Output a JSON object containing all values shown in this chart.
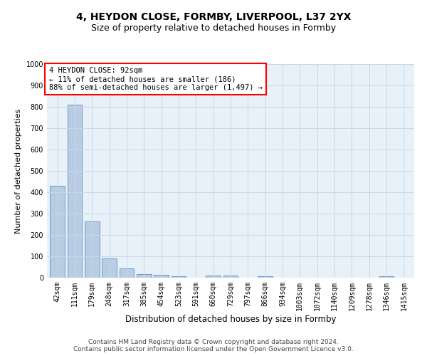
{
  "title_line1": "4, HEYDON CLOSE, FORMBY, LIVERPOOL, L37 2YX",
  "title_line2": "Size of property relative to detached houses in Formby",
  "xlabel": "Distribution of detached houses by size in Formby",
  "ylabel": "Number of detached properties",
  "categories": [
    "42sqm",
    "111sqm",
    "179sqm",
    "248sqm",
    "317sqm",
    "385sqm",
    "454sqm",
    "523sqm",
    "591sqm",
    "660sqm",
    "729sqm",
    "797sqm",
    "866sqm",
    "934sqm",
    "1003sqm",
    "1072sqm",
    "1140sqm",
    "1209sqm",
    "1278sqm",
    "1346sqm",
    "1415sqm"
  ],
  "values": [
    430,
    810,
    265,
    90,
    42,
    18,
    14,
    8,
    0,
    10,
    10,
    0,
    7,
    0,
    0,
    0,
    0,
    0,
    0,
    8,
    0
  ],
  "bar_color": "#b8cce4",
  "bar_edge_color": "#5b8dc8",
  "annotation_text": "4 HEYDON CLOSE: 92sqm\n← 11% of detached houses are smaller (186)\n88% of semi-detached houses are larger (1,497) →",
  "annotation_box_color": "white",
  "annotation_box_edge_color": "red",
  "ylim": [
    0,
    1000
  ],
  "yticks": [
    0,
    100,
    200,
    300,
    400,
    500,
    600,
    700,
    800,
    900,
    1000
  ],
  "grid_color": "#c8d8e8",
  "background_color": "#e8f0f8",
  "footer_line1": "Contains HM Land Registry data © Crown copyright and database right 2024.",
  "footer_line2": "Contains public sector information licensed under the Open Government Licence v3.0.",
  "title1_fontsize": 10,
  "title2_fontsize": 9,
  "xlabel_fontsize": 8.5,
  "ylabel_fontsize": 8,
  "tick_fontsize": 7,
  "footer_fontsize": 6.5,
  "annot_fontsize": 7.5
}
